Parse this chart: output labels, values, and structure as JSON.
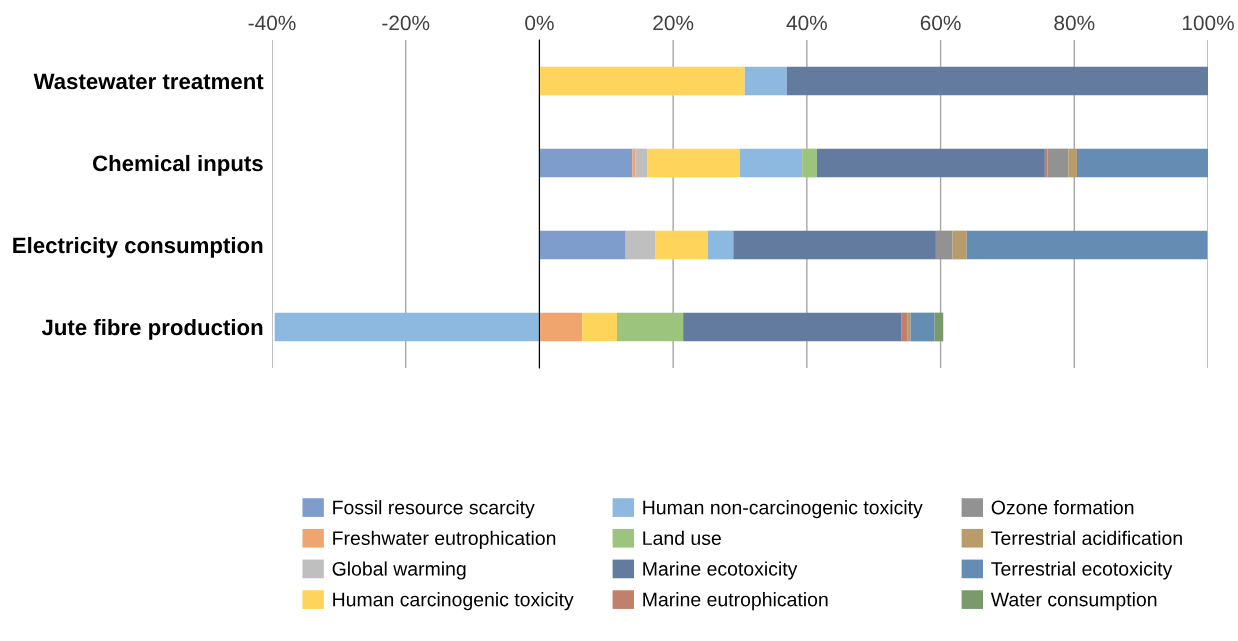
{
  "chart_data": {
    "type": "bar",
    "orientation": "horizontal",
    "stacked": true,
    "categories": [
      "Wastewater treatment",
      "Chemical inputs",
      "Electricity consumption",
      "Jute fibre production"
    ],
    "series": [
      {
        "name": "Fossil resource scarcity",
        "color": "#7f9dcc",
        "values": [
          0,
          13.9,
          12.9,
          0
        ]
      },
      {
        "name": "Freshwater eutrophication",
        "color": "#f0a56f",
        "values": [
          0,
          0.5,
          null,
          6.4
        ]
      },
      {
        "name": "Global warming",
        "color": "#bfbfbf",
        "values": [
          0,
          1.7,
          4.4,
          0
        ]
      },
      {
        "name": "Human carcinogenic toxicity",
        "color": "#fed45a",
        "values": [
          30.7,
          13.9,
          7.9,
          5.2
        ]
      },
      {
        "name": "Human non-carcinogenic toxicity",
        "color": "#8db8e0",
        "values": [
          6.3,
          9.3,
          3.8,
          -39.6
        ]
      },
      {
        "name": "Land use",
        "color": "#9cc47c",
        "values": [
          0,
          2.2,
          0,
          9.9
        ]
      },
      {
        "name": "Marine ecotoxicity",
        "color": "#637b9f",
        "values": [
          63.0,
          34.1,
          30.3,
          32.6
        ]
      },
      {
        "name": "Marine eutrophication",
        "color": "#c0806a",
        "values": [
          0,
          0.4,
          0,
          0.9
        ]
      },
      {
        "name": "Ozone formation",
        "color": "#929292",
        "values": [
          0,
          3.1,
          2.5,
          0
        ]
      },
      {
        "name": "Terrestrial acidification",
        "color": "#b89c6c",
        "values": [
          0,
          1.3,
          2.1,
          0.5
        ]
      },
      {
        "name": "Terrestrial ecotoxicity",
        "color": "#658db3",
        "values": [
          0,
          19.6,
          36.0,
          3.6
        ]
      },
      {
        "name": "Water consumption",
        "color": "#7a9a6c",
        "values": [
          0,
          0,
          0,
          1.3
        ]
      }
    ],
    "xlim": [
      -40,
      100
    ],
    "xticks": [
      {
        "value": -40,
        "label": "-40%"
      },
      {
        "value": -20,
        "label": "-20%"
      },
      {
        "value": 0,
        "label": "0%"
      },
      {
        "value": 20,
        "label": "20%"
      },
      {
        "value": 40,
        "label": "40%"
      },
      {
        "value": 60,
        "label": "60%"
      },
      {
        "value": 80,
        "label": "80%"
      },
      {
        "value": 100,
        "label": "100%"
      }
    ],
    "grid": "x",
    "legend": "bottom"
  }
}
